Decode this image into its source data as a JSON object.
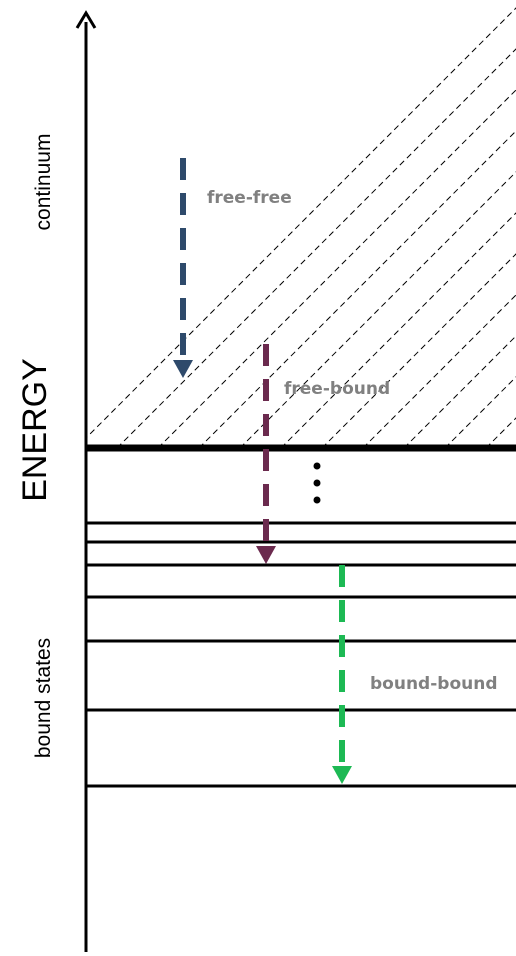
{
  "labels": {
    "energy_axis": "ENERGY",
    "continuum": "continuum",
    "bound_states": "bound states",
    "ellipsis": "⋮"
  },
  "transitions": [
    {
      "id": "free-free",
      "label": "free-free",
      "color": "#2e4a6b"
    },
    {
      "id": "free-bound",
      "label": "free-bound",
      "color": "#6b2a4e"
    },
    {
      "id": "bound-bound",
      "label": "bound-bound",
      "color": "#1db954"
    }
  ],
  "regions": {
    "continuum": {
      "pattern": "diagonal-dashed-hatch"
    },
    "bound": {
      "levels": 7
    }
  }
}
